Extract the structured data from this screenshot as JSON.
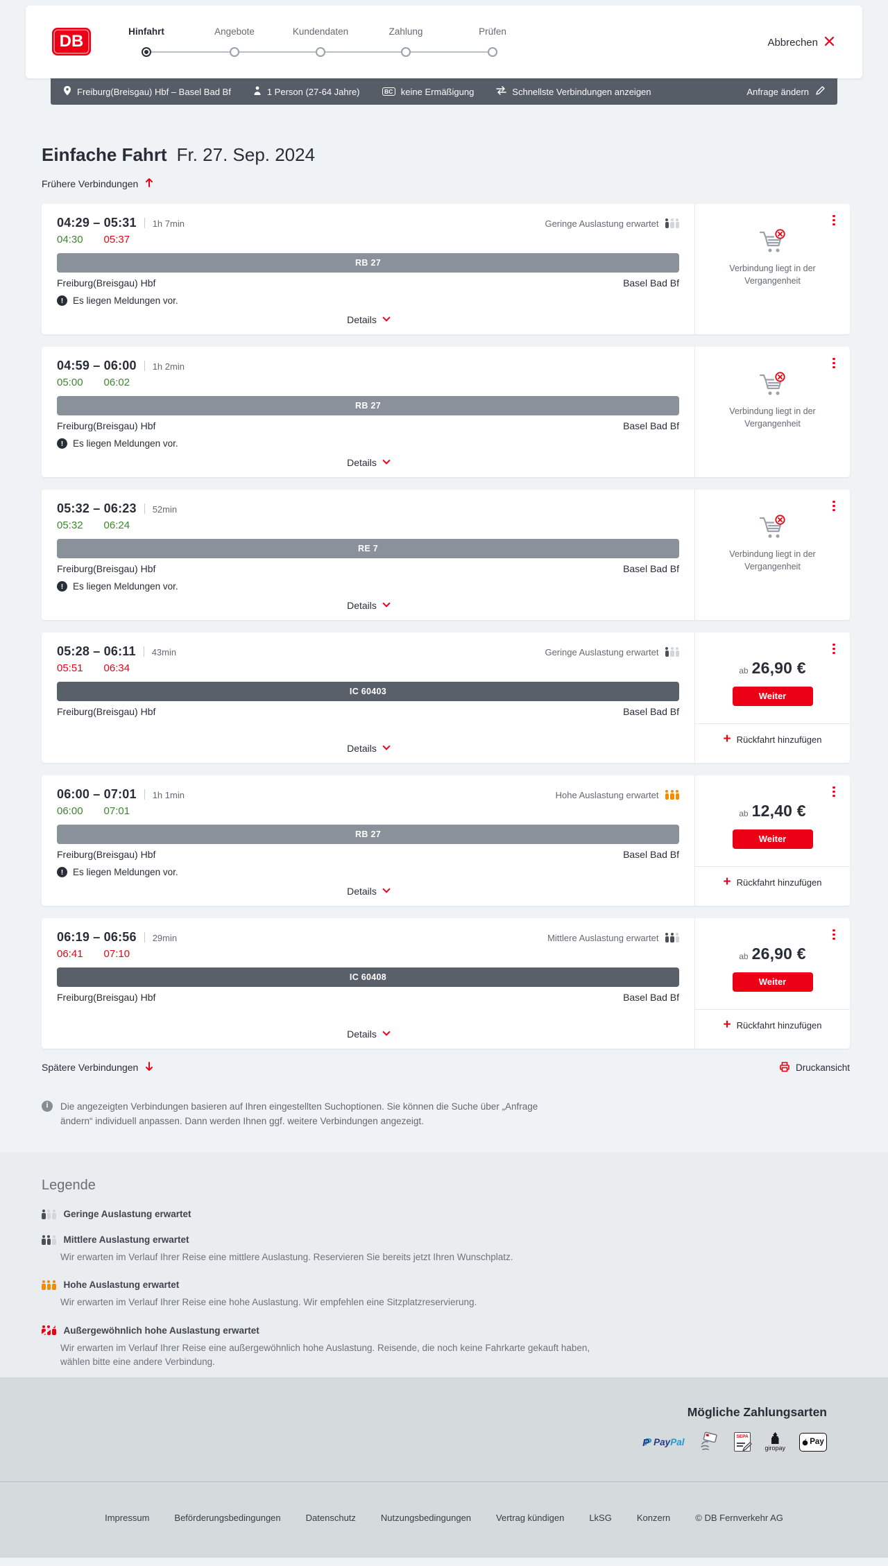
{
  "colors": {
    "brand_red": "#ec0016",
    "ontime_green": "#3e8530",
    "delayed_red": "#e30613",
    "occupancy_orange": "#f28c00",
    "query_bar_bg": "#565d66",
    "regional_train_bar": "#8a919b",
    "ic_train_bar": "#596069"
  },
  "header": {
    "logo_text": "DB",
    "steps": [
      {
        "label": "Hinfahrt",
        "active": true
      },
      {
        "label": "Angebote",
        "active": false
      },
      {
        "label": "Kundendaten",
        "active": false
      },
      {
        "label": "Zahlung",
        "active": false
      },
      {
        "label": "Prüfen",
        "active": false
      }
    ],
    "cancel_label": "Abbrechen"
  },
  "query_bar": {
    "route": "Freiburg(Breisgau) Hbf – Basel Bad Bf",
    "passengers": "1 Person (27-64 Jahre)",
    "discount_badge": "BC",
    "discount": "keine Ermäßigung",
    "fastest": "Schnellste Verbindungen anzeigen",
    "modify": "Anfrage ändern"
  },
  "page": {
    "title": "Einfache Fahrt",
    "date": "Fr. 27. Sep. 2024",
    "earlier": "Frühere Verbindungen",
    "later": "Spätere Verbindungen",
    "print": "Druckansicht",
    "info_note": "Die angezeigten Verbindungen basieren auf Ihren eingestellten Suchoptionen. Sie können die Suche über „Anfrage ändern“ individuell anpassen. Dann werden Ihnen ggf. weitere Verbindungen angezeigt."
  },
  "connections": [
    {
      "time_range": "04:29 – 05:31",
      "duration": "1h 7min",
      "dep": "04:30",
      "dep_status": "ontime",
      "arr": "05:37",
      "arr_status": "delayed",
      "occupancy": {
        "label": "Geringe Auslastung erwartet",
        "level": 1
      },
      "train": "RB 27",
      "train_style": "regional",
      "from": "Freiburg(Breisgau) Hbf",
      "to": "Basel Bad Bf",
      "notice": "Es liegen Meldungen vor.",
      "details_label": "Details",
      "panel": {
        "type": "past",
        "message": "Verbindung liegt in der Vergangenheit"
      }
    },
    {
      "time_range": "04:59 – 06:00",
      "duration": "1h 2min",
      "dep": "05:00",
      "dep_status": "ontime",
      "arr": "06:02",
      "arr_status": "ontime",
      "occupancy": null,
      "train": "RB 27",
      "train_style": "regional",
      "from": "Freiburg(Breisgau) Hbf",
      "to": "Basel Bad Bf",
      "notice": "Es liegen Meldungen vor.",
      "details_label": "Details",
      "panel": {
        "type": "past",
        "message": "Verbindung liegt in der Vergangenheit"
      }
    },
    {
      "time_range": "05:32 – 06:23",
      "duration": "52min",
      "dep": "05:32",
      "dep_status": "ontime",
      "arr": "06:24",
      "arr_status": "ontime",
      "occupancy": null,
      "train": "RE 7",
      "train_style": "regional",
      "from": "Freiburg(Breisgau) Hbf",
      "to": "Basel Bad Bf",
      "notice": "Es liegen Meldungen vor.",
      "details_label": "Details",
      "panel": {
        "type": "past",
        "message": "Verbindung liegt in der Vergangenheit"
      }
    },
    {
      "time_range": "05:28 – 06:11",
      "duration": "43min",
      "dep": "05:51",
      "dep_status": "delayed",
      "arr": "06:34",
      "arr_status": "delayed",
      "occupancy": {
        "label": "Geringe Auslastung erwartet",
        "level": 1
      },
      "train": "IC 60403",
      "train_style": "ic",
      "from": "Freiburg(Breisgau) Hbf",
      "to": "Basel Bad Bf",
      "notice": null,
      "details_label": "Details",
      "panel": {
        "type": "offer",
        "prefix": "ab",
        "price": "26,90 €",
        "cta": "Weiter",
        "add_return": "Rückfahrt hinzufügen"
      }
    },
    {
      "time_range": "06:00 – 07:01",
      "duration": "1h 1min",
      "dep": "06:00",
      "dep_status": "ontime",
      "arr": "07:01",
      "arr_status": "ontime",
      "occupancy": {
        "label": "Hohe Auslastung erwartet",
        "level": 3
      },
      "train": "RB 27",
      "train_style": "regional",
      "from": "Freiburg(Breisgau) Hbf",
      "to": "Basel Bad Bf",
      "notice": "Es liegen Meldungen vor.",
      "details_label": "Details",
      "panel": {
        "type": "offer",
        "prefix": "ab",
        "price": "12,40 €",
        "cta": "Weiter",
        "add_return": "Rückfahrt hinzufügen"
      }
    },
    {
      "time_range": "06:19 – 06:56",
      "duration": "29min",
      "dep": "06:41",
      "dep_status": "delayed",
      "arr": "07:10",
      "arr_status": "delayed",
      "occupancy": {
        "label": "Mittlere Auslastung erwartet",
        "level": 2
      },
      "train": "IC 60408",
      "train_style": "ic",
      "from": "Freiburg(Breisgau) Hbf",
      "to": "Basel Bad Bf",
      "notice": null,
      "details_label": "Details",
      "panel": {
        "type": "offer",
        "prefix": "ab",
        "price": "26,90 €",
        "cta": "Weiter",
        "add_return": "Rückfahrt hinzufügen"
      }
    }
  ],
  "legend": {
    "title": "Legende",
    "items": [
      {
        "label": "Geringe Auslastung erwartet",
        "level": 1,
        "description": null
      },
      {
        "label": "Mittlere Auslastung erwartet",
        "level": 2,
        "description": "Wir erwarten im Verlauf Ihrer Reise eine mittlere Auslastung. Reservieren Sie bereits jetzt Ihren Wunschplatz."
      },
      {
        "label": "Hohe Auslastung erwartet",
        "level": 3,
        "description": "Wir erwarten im Verlauf Ihrer Reise eine hohe Auslastung. Wir empfehlen eine Sitzplatzreservierung."
      },
      {
        "label": "Außergewöhnlich hohe Auslastung erwartet",
        "level": 4,
        "description": "Wir erwarten im Verlauf Ihrer Reise eine außergewöhnlich hohe Auslastung. Reisende, die noch keine Fahrkarte gekauft haben, wählen bitte eine andere Verbindung."
      }
    ]
  },
  "payment": {
    "title": "Mögliche Zahlungsarten",
    "methods": [
      "PayPal",
      "Kreditkarte",
      "SEPA-Lastschrift",
      "giropay",
      "Apple Pay"
    ],
    "paypal_parts": [
      "Pay",
      "Pal"
    ],
    "sepa_label": "SEPA",
    "giropay_label": "giropay",
    "applepay_label": "Pay"
  },
  "footer": {
    "links": [
      "Impressum",
      "Beförderungsbedingungen",
      "Datenschutz",
      "Nutzungsbedingungen",
      "Vertrag kündigen",
      "LkSG",
      "Konzern"
    ],
    "copyright": "© DB Fernverkehr AG"
  }
}
